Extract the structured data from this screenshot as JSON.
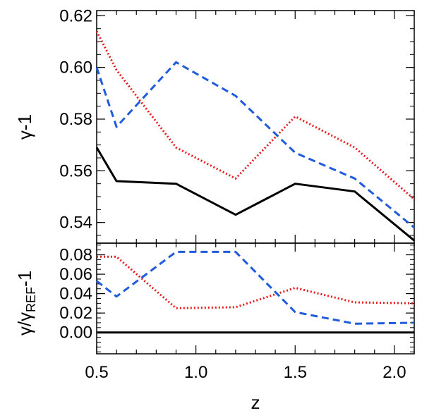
{
  "chart_data": [
    {
      "type": "line",
      "ylabel": "γ-1",
      "xlim": [
        0.5,
        2.1
      ],
      "ylim": [
        0.532,
        0.622
      ],
      "yticks": [
        "0.54",
        "0.56",
        "0.58",
        "0.60",
        "0.62"
      ],
      "series": [
        {
          "style": "solid",
          "color": "#000000",
          "x": [
            0.5,
            0.6,
            0.9,
            1.2,
            1.5,
            1.8,
            2.1
          ],
          "y": [
            0.569,
            0.556,
            0.555,
            0.543,
            0.555,
            0.552,
            0.533
          ]
        },
        {
          "style": "dotted",
          "color": "#e8191b",
          "x": [
            0.5,
            0.6,
            0.9,
            1.2,
            1.5,
            1.8,
            2.1
          ],
          "y": [
            0.614,
            0.599,
            0.569,
            0.557,
            0.581,
            0.569,
            0.549
          ]
        },
        {
          "style": "dashed",
          "color": "#1f5bdc",
          "x": [
            0.5,
            0.6,
            0.9,
            1.2,
            1.5,
            1.8,
            2.1
          ],
          "y": [
            0.6,
            0.577,
            0.602,
            0.589,
            0.567,
            0.557,
            0.538
          ]
        }
      ]
    },
    {
      "type": "line",
      "xlabel": "z",
      "ylabel_main": "γ/γ",
      "ylabel_sub": "REF",
      "ylabel_tail": "-1",
      "xlim": [
        0.5,
        2.1
      ],
      "ylim": [
        -0.022,
        0.092
      ],
      "xticks": [
        "0.5",
        "1.0",
        "1.5",
        "2.0"
      ],
      "yticks": [
        "0.00",
        "0.02",
        "0.04",
        "0.06",
        "0.08"
      ],
      "series": [
        {
          "style": "solid",
          "color": "#000000",
          "x": [
            0.5,
            2.1
          ],
          "y": [
            0.0,
            0.0
          ]
        },
        {
          "style": "dotted",
          "color": "#e8191b",
          "x": [
            0.5,
            0.6,
            0.9,
            1.2,
            1.5,
            1.8,
            2.1
          ],
          "y": [
            0.078,
            0.078,
            0.025,
            0.026,
            0.046,
            0.031,
            0.03
          ]
        },
        {
          "style": "dashed",
          "color": "#1f5bdc",
          "x": [
            0.5,
            0.6,
            0.9,
            1.2,
            1.5,
            1.8,
            2.1
          ],
          "y": [
            0.053,
            0.037,
            0.083,
            0.083,
            0.021,
            0.009,
            0.01
          ]
        }
      ]
    }
  ]
}
